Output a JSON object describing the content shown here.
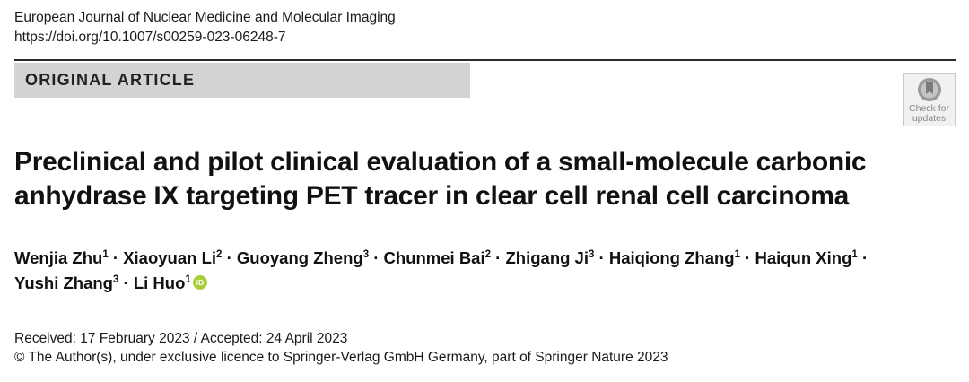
{
  "journal": {
    "name": "European Journal of Nuclear Medicine and Molecular Imaging",
    "doi": "https://doi.org/10.1007/s00259-023-06248-7"
  },
  "article_type": "ORIGINAL ARTICLE",
  "check_badge": {
    "line1": "Check for",
    "line2": "updates",
    "icon": "check-for-updates-icon"
  },
  "title": {
    "line1": "Preclinical and pilot clinical evaluation of a small-molecule carbonic",
    "line2": "anhydrase IX targeting PET tracer in clear cell renal cell carcinoma"
  },
  "authors": [
    {
      "name": "Wenjia Zhu",
      "aff": "1"
    },
    {
      "name": "Xiaoyuan Li",
      "aff": "2"
    },
    {
      "name": "Guoyang Zheng",
      "aff": "3"
    },
    {
      "name": "Chunmei Bai",
      "aff": "2"
    },
    {
      "name": "Zhigang Ji",
      "aff": "3"
    },
    {
      "name": "Haiqiong Zhang",
      "aff": "1"
    },
    {
      "name": "Haiqun Xing",
      "aff": "1"
    },
    {
      "name": "Yushi Zhang",
      "aff": "3"
    },
    {
      "name": "Li Huo",
      "aff": "1"
    }
  ],
  "author_separator": "·",
  "orcid_icon": "orcid-icon",
  "orcid_color": "#a6ce39",
  "received_accepted": "Received: 17 February 2023 / Accepted: 24 April 2023",
  "copyright": "© The Author(s), under exclusive licence to Springer-Verlag GmbH Germany, part of Springer Nature 2023"
}
